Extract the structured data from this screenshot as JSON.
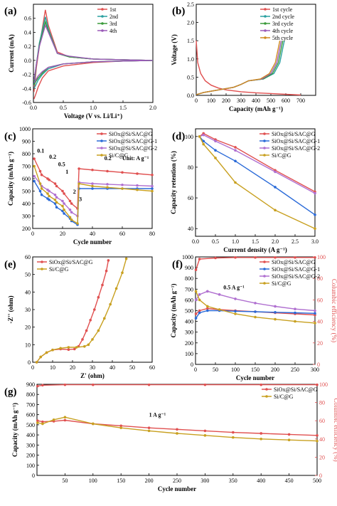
{
  "chart_data": [
    {
      "panel": "(a)",
      "type": "line",
      "xlabel": "Voltage (V vs. Li/Li⁺)",
      "ylabel": "Current (mA)",
      "xlim": [
        0,
        2.0
      ],
      "ylim": [
        -0.6,
        0.8
      ],
      "xticks": [
        0.0,
        0.5,
        1.0,
        1.5,
        2.0
      ],
      "yticks": [
        -0.6,
        -0.4,
        -0.2,
        0.0,
        0.2,
        0.4,
        0.6
      ],
      "ytick_labels": [
        "-0.6",
        "-0.4",
        "-0.2",
        "0.0",
        "0.2",
        "0.4",
        "0.6"
      ],
      "legend": "top-right",
      "series": [
        {
          "name": "1st",
          "color": "#e05050",
          "x": [
            0.01,
            0.05,
            0.1,
            0.2,
            0.25,
            0.4,
            0.6,
            1.0,
            1.5,
            2.0,
            1.5,
            1.0,
            0.5,
            0.25,
            0.15,
            0.08,
            0.04,
            0.01
          ],
          "y": [
            -0.45,
            -0.1,
            0.2,
            0.72,
            0.5,
            0.12,
            0.05,
            0.02,
            0.01,
            0.0,
            -0.01,
            -0.03,
            -0.08,
            -0.15,
            -0.25,
            -0.38,
            -0.48,
            -0.55
          ]
        },
        {
          "name": "2nd",
          "color": "#2aa0a0",
          "x": [
            0.01,
            0.05,
            0.1,
            0.2,
            0.25,
            0.4,
            0.6,
            1.0,
            1.5,
            2.0,
            1.5,
            1.0,
            0.5,
            0.25,
            0.15,
            0.08,
            0.04,
            0.01
          ],
          "y": [
            -0.35,
            -0.05,
            0.25,
            0.62,
            0.45,
            0.1,
            0.05,
            0.02,
            0.01,
            0.0,
            -0.01,
            -0.02,
            -0.05,
            -0.12,
            -0.2,
            -0.28,
            -0.35,
            -0.4
          ]
        },
        {
          "name": "3rd",
          "color": "#3a9a3a",
          "x": [
            0.01,
            0.05,
            0.1,
            0.2,
            0.25,
            0.4,
            0.6,
            1.0,
            1.5,
            2.0,
            1.5,
            1.0,
            0.5,
            0.25,
            0.15,
            0.08,
            0.04,
            0.01
          ],
          "y": [
            -0.3,
            -0.05,
            0.22,
            0.55,
            0.42,
            0.1,
            0.05,
            0.02,
            0.01,
            0.0,
            -0.01,
            -0.02,
            -0.05,
            -0.1,
            -0.18,
            -0.25,
            -0.3,
            -0.35
          ]
        },
        {
          "name": "4th",
          "color": "#9a5ab8",
          "x": [
            0.01,
            0.05,
            0.1,
            0.2,
            0.25,
            0.4,
            0.6,
            1.0,
            1.5,
            2.0,
            1.5,
            1.0,
            0.5,
            0.25,
            0.15,
            0.08,
            0.04,
            0.01
          ],
          "y": [
            -0.28,
            -0.05,
            0.2,
            0.5,
            0.4,
            0.1,
            0.06,
            0.02,
            0.01,
            0.0,
            -0.01,
            -0.02,
            -0.05,
            -0.1,
            -0.16,
            -0.22,
            -0.28,
            -0.32
          ]
        }
      ]
    },
    {
      "panel": "(b)",
      "type": "line",
      "xlabel": "Capacity (mAh g⁻¹)",
      "ylabel": "Voltage (V)",
      "xlim": [
        0,
        800
      ],
      "ylim": [
        0,
        2.5
      ],
      "xticks": [
        0,
        100,
        200,
        300,
        400,
        500,
        600,
        700
      ],
      "yticks": [
        0.0,
        0.5,
        1.0,
        1.5,
        2.0,
        2.5
      ],
      "legend": "top-right",
      "series": [
        {
          "name": "1st cycle",
          "color": "#e05050",
          "x": [
            0,
            10,
            30,
            60,
            100,
            150,
            200,
            300,
            400,
            500,
            600,
            700
          ],
          "y": [
            1.5,
            0.9,
            0.6,
            0.4,
            0.28,
            0.2,
            0.15,
            0.1,
            0.07,
            0.05,
            0.03,
            0.01
          ]
        },
        {
          "name": "2nd cycle",
          "color": "#2aa0a0",
          "x": [
            0,
            50,
            150,
            250,
            300,
            350,
            450,
            520,
            560,
            580,
            590
          ],
          "y": [
            0.02,
            0.08,
            0.15,
            0.22,
            0.3,
            0.4,
            0.45,
            0.6,
            0.9,
            1.3,
            1.5
          ]
        },
        {
          "name": "3rd cycle",
          "color": "#3a9a3a",
          "x": [
            0,
            50,
            150,
            250,
            300,
            350,
            450,
            510,
            550,
            570,
            580
          ],
          "y": [
            0.02,
            0.08,
            0.15,
            0.22,
            0.3,
            0.4,
            0.45,
            0.6,
            0.9,
            1.3,
            1.5
          ]
        },
        {
          "name": "4th cycle",
          "color": "#9a5ab8",
          "x": [
            0,
            50,
            150,
            250,
            300,
            350,
            440,
            500,
            540,
            560,
            570
          ],
          "y": [
            0.02,
            0.08,
            0.15,
            0.22,
            0.3,
            0.4,
            0.45,
            0.6,
            0.9,
            1.3,
            1.5
          ]
        },
        {
          "name": "5th cycle",
          "color": "#d08a20",
          "x": [
            0,
            50,
            150,
            250,
            300,
            350,
            430,
            490,
            530,
            550,
            560
          ],
          "y": [
            0.02,
            0.08,
            0.15,
            0.22,
            0.3,
            0.4,
            0.45,
            0.6,
            0.9,
            1.3,
            1.5
          ]
        }
      ]
    },
    {
      "panel": "(c)",
      "type": "scatter",
      "xlabel": "Cycle number",
      "ylabel": "Capacity (mAh g⁻¹)",
      "xlim": [
        0,
        80
      ],
      "ylim": [
        200,
        1000
      ],
      "xticks": [
        0,
        20,
        40,
        60,
        80
      ],
      "yticks": [
        200,
        300,
        400,
        500,
        600,
        700,
        800,
        900,
        1000
      ],
      "legend": "top-right",
      "annotations": [
        "0.1",
        "0.2",
        "0.5",
        "1",
        "2",
        "3",
        "0.2",
        "Unit: A g⁻¹"
      ],
      "series": [
        {
          "name": "SiOx@Si/SAC@G",
          "color": "#e05050",
          "x": [
            1,
            5,
            6,
            10,
            11,
            15,
            16,
            20,
            21,
            25,
            26,
            30,
            31,
            40,
            50,
            60,
            70,
            80
          ],
          "y": [
            760,
            660,
            630,
            600,
            590,
            560,
            540,
            500,
            480,
            420,
            400,
            360,
            680,
            670,
            660,
            650,
            640,
            630
          ]
        },
        {
          "name": "SiOx@Si/SAC@G-1",
          "color": "#2a6ad8",
          "x": [
            1,
            5,
            6,
            10,
            11,
            15,
            16,
            20,
            21,
            25,
            26,
            30,
            31,
            40,
            50,
            60,
            70,
            80
          ],
          "y": [
            580,
            500,
            470,
            440,
            430,
            400,
            370,
            340,
            320,
            280,
            260,
            230,
            520,
            520,
            520,
            520,
            520,
            520
          ]
        },
        {
          "name": "SiOx@Si/SAC@G-2",
          "color": "#b070d0",
          "x": [
            1,
            5,
            6,
            10,
            11,
            15,
            16,
            20,
            21,
            25,
            26,
            30,
            31,
            40,
            50,
            60,
            70,
            80
          ],
          "y": [
            620,
            560,
            540,
            510,
            500,
            470,
            450,
            420,
            400,
            350,
            330,
            300,
            570,
            560,
            555,
            550,
            545,
            540
          ]
        },
        {
          "name": "Si/C@G",
          "color": "#c8a020",
          "x": [
            1,
            5,
            6,
            10,
            11,
            15,
            16,
            20,
            21,
            25,
            26,
            30,
            31,
            40,
            50,
            60,
            70,
            80
          ],
          "y": [
            700,
            560,
            520,
            480,
            460,
            430,
            410,
            380,
            350,
            290,
            270,
            240,
            560,
            540,
            530,
            520,
            510,
            500
          ]
        }
      ]
    },
    {
      "panel": "(d)",
      "type": "line",
      "xlabel": "Current density (A g⁻¹)",
      "ylabel": "Capacity retention (%)",
      "xlim": [
        0,
        3.0
      ],
      "ylim": [
        35,
        105
      ],
      "xticks": [
        0.0,
        0.5,
        1.0,
        1.5,
        2.0,
        2.5,
        3.0
      ],
      "yticks": [
        40,
        60,
        80,
        100
      ],
      "legend": "top-right",
      "series": [
        {
          "name": "SiOx@Si/SAC@G",
          "color": "#e05050",
          "x": [
            0.1,
            0.2,
            0.5,
            1.0,
            2.0,
            3.0
          ],
          "y": [
            100,
            102,
            98,
            93,
            78,
            64
          ]
        },
        {
          "name": "SiOx@Si/SAC@G-1",
          "color": "#2a6ad8",
          "x": [
            0.1,
            0.2,
            0.5,
            1.0,
            2.0,
            3.0
          ],
          "y": [
            100,
            97,
            91,
            84,
            67,
            49
          ]
        },
        {
          "name": "SiOx@Si/SAC@G-2",
          "color": "#b070d0",
          "x": [
            0.1,
            0.2,
            0.5,
            1.0,
            2.0,
            3.0
          ],
          "y": [
            100,
            101,
            97,
            91,
            77,
            63
          ]
        },
        {
          "name": "Si/C@G",
          "color": "#c8a020",
          "x": [
            0.1,
            0.2,
            0.5,
            1.0,
            2.0,
            3.0
          ],
          "y": [
            100,
            95,
            86,
            70,
            52,
            40
          ]
        }
      ]
    },
    {
      "panel": "(e)",
      "type": "scatter",
      "xlabel": "Z' (ohm)",
      "ylabel": "-Z'' (ohm)",
      "xlim": [
        0,
        60
      ],
      "ylim": [
        0,
        60
      ],
      "xticks": [
        0,
        10,
        20,
        30,
        40,
        50,
        60
      ],
      "yticks": [
        0,
        10,
        20,
        30,
        40,
        50,
        60
      ],
      "legend": "top-left",
      "series": [
        {
          "name": "SiOx@Si/SAC@G",
          "color": "#e05050",
          "x": [
            2,
            4,
            7,
            10,
            14,
            18,
            21,
            23,
            25,
            27,
            29,
            31,
            33,
            35,
            37,
            38
          ],
          "y": [
            0,
            3,
            5.5,
            7,
            7.5,
            7.2,
            7.5,
            9,
            13,
            18,
            24,
            30,
            37,
            44,
            52,
            58
          ]
        },
        {
          "name": "Si/C@G",
          "color": "#c8a020",
          "x": [
            2,
            4,
            7,
            10,
            14,
            18,
            22,
            26,
            28,
            30,
            33,
            36,
            39,
            42,
            45,
            47
          ],
          "y": [
            0,
            3,
            5.5,
            7,
            8,
            8.5,
            8.5,
            9,
            10,
            13,
            18,
            25,
            33,
            42,
            51,
            59
          ]
        }
      ]
    },
    {
      "panel": "(f)",
      "type": "scatter",
      "xlabel": "Cycle number",
      "ylabel": "Capacity (mAh g⁻¹)",
      "y2label": "Columbic efficiency (%)",
      "xlim": [
        0,
        300
      ],
      "ylim": [
        0,
        1000
      ],
      "y2lim": [
        0,
        100
      ],
      "xticks": [
        0,
        50,
        100,
        150,
        200,
        250,
        300
      ],
      "yticks": [
        0,
        100,
        200,
        300,
        400,
        500,
        600,
        700,
        800,
        900,
        1000
      ],
      "y2ticks": [
        0,
        20,
        40,
        60,
        80,
        100
      ],
      "legend": "top-right",
      "annotations": [
        "0.5 A g⁻¹"
      ],
      "series": [
        {
          "name": "SiOx@Si/SAC@G",
          "color": "#e05050",
          "x": [
            1,
            10,
            30,
            60,
            100,
            150,
            200,
            250,
            300
          ],
          "y": [
            470,
            500,
            520,
            510,
            500,
            490,
            480,
            470,
            460
          ]
        },
        {
          "name": "SiOx@Si/SAC@G-1",
          "color": "#2a6ad8",
          "x": [
            1,
            10,
            30,
            60,
            100,
            150,
            200,
            250,
            300
          ],
          "y": [
            430,
            480,
            500,
            500,
            495,
            490,
            485,
            480,
            475
          ]
        },
        {
          "name": "SiOx@Si/SAC@G-2",
          "color": "#b070d0",
          "x": [
            1,
            10,
            30,
            60,
            100,
            150,
            200,
            250,
            300
          ],
          "y": [
            600,
            650,
            680,
            650,
            610,
            570,
            540,
            515,
            500
          ]
        },
        {
          "name": "Si/C@G",
          "color": "#c8a020",
          "x": [
            1,
            10,
            30,
            60,
            100,
            150,
            200,
            250,
            300
          ],
          "y": [
            680,
            600,
            540,
            510,
            470,
            440,
            420,
            400,
            385
          ]
        },
        {
          "name": "",
          "color": "#e05050",
          "x": [
            1,
            10,
            50,
            100,
            150,
            200,
            250,
            300
          ],
          "y2": [
            88,
            98,
            99,
            99.5,
            99.5,
            99.5,
            99.5,
            99.5
          ]
        }
      ]
    },
    {
      "panel": "(g)",
      "type": "scatter",
      "xlabel": "Cycle number",
      "ylabel": "Capacity (mAh g⁻¹)",
      "y2label": "Columbic efficiency (%)",
      "xlim": [
        0,
        500
      ],
      "ylim": [
        0,
        900
      ],
      "y2lim": [
        0,
        100
      ],
      "xticks": [
        50,
        100,
        150,
        200,
        250,
        300,
        350,
        400,
        450,
        500
      ],
      "yticks": [
        0,
        100,
        200,
        300,
        400,
        500,
        600,
        700,
        800,
        900
      ],
      "y2ticks": [
        0,
        20,
        40,
        60,
        80,
        100
      ],
      "legend": "top-right",
      "annotations": [
        "1 A g⁻¹"
      ],
      "series": [
        {
          "name": "SiOx@Si/SAC@G",
          "color": "#e05050",
          "x": [
            1,
            10,
            30,
            50,
            100,
            150,
            200,
            250,
            300,
            350,
            400,
            450,
            500
          ],
          "y": [
            540,
            530,
            535,
            545,
            510,
            490,
            470,
            455,
            440,
            425,
            415,
            405,
            395
          ]
        },
        {
          "name": "Si/C@G",
          "color": "#c8a020",
          "x": [
            1,
            10,
            30,
            50,
            100,
            150,
            200,
            250,
            300,
            350,
            400,
            450,
            500
          ],
          "y": [
            520,
            510,
            550,
            575,
            510,
            470,
            440,
            415,
            395,
            375,
            360,
            350,
            340
          ]
        },
        {
          "name": "",
          "color": "#e05050",
          "x": [
            1,
            10,
            50,
            100,
            200,
            300,
            400,
            500
          ],
          "y2": [
            98,
            99,
            99.5,
            99.5,
            99.5,
            99.5,
            99.5,
            99.5
          ]
        }
      ]
    }
  ]
}
